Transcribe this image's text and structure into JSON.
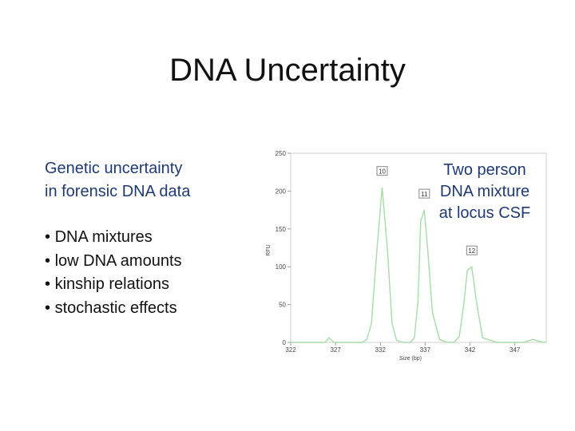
{
  "slide": {
    "title": "DNA Uncertainty",
    "subtitle_lines": [
      "Genetic uncertainty",
      "in forensic DNA data"
    ],
    "bullets": [
      "DNA mixtures",
      "low DNA amounts",
      "kinship relations",
      "stochastic effects"
    ],
    "caption_lines": [
      "Two person",
      "DNA mixture",
      "at locus CSF"
    ]
  },
  "chart_data": {
    "type": "line",
    "title": "",
    "xlabel": "Size (bp)",
    "ylabel": "RFU",
    "xlim": [
      322,
      350.5
    ],
    "ylim": [
      0,
      250
    ],
    "xticks": [
      322,
      327,
      332,
      337,
      342,
      347
    ],
    "yticks": [
      0,
      50,
      100,
      150,
      200,
      250
    ],
    "line_color": "#a6dca6",
    "label_box_color": "#888888",
    "series": [
      {
        "x": [
          322,
          325.8,
          326.3,
          326.8,
          328,
          330,
          330.5,
          331,
          331.6,
          332.2,
          332.8,
          333.3,
          333.8,
          334.5,
          335.3,
          335.8,
          336.2,
          336.5,
          336.9,
          337.3,
          337.8,
          338.6,
          339.4,
          340.2,
          340.8,
          341.3,
          341.7,
          342.2,
          342.7,
          343.4,
          345,
          348,
          349,
          349.8,
          350.5
        ],
        "y": [
          0,
          0,
          6,
          0,
          0,
          0,
          4,
          25,
          120,
          205,
          120,
          25,
          3,
          0,
          0,
          6,
          55,
          160,
          175,
          120,
          40,
          4,
          0,
          0,
          8,
          50,
          95,
          100,
          55,
          6,
          0,
          0,
          4,
          1,
          0
        ]
      }
    ],
    "peak_labels": [
      {
        "text": "10",
        "x": 332.2,
        "y": 205
      },
      {
        "text": "11",
        "x": 336.9,
        "y": 175
      },
      {
        "text": "12",
        "x": 342.2,
        "y": 100
      }
    ]
  }
}
